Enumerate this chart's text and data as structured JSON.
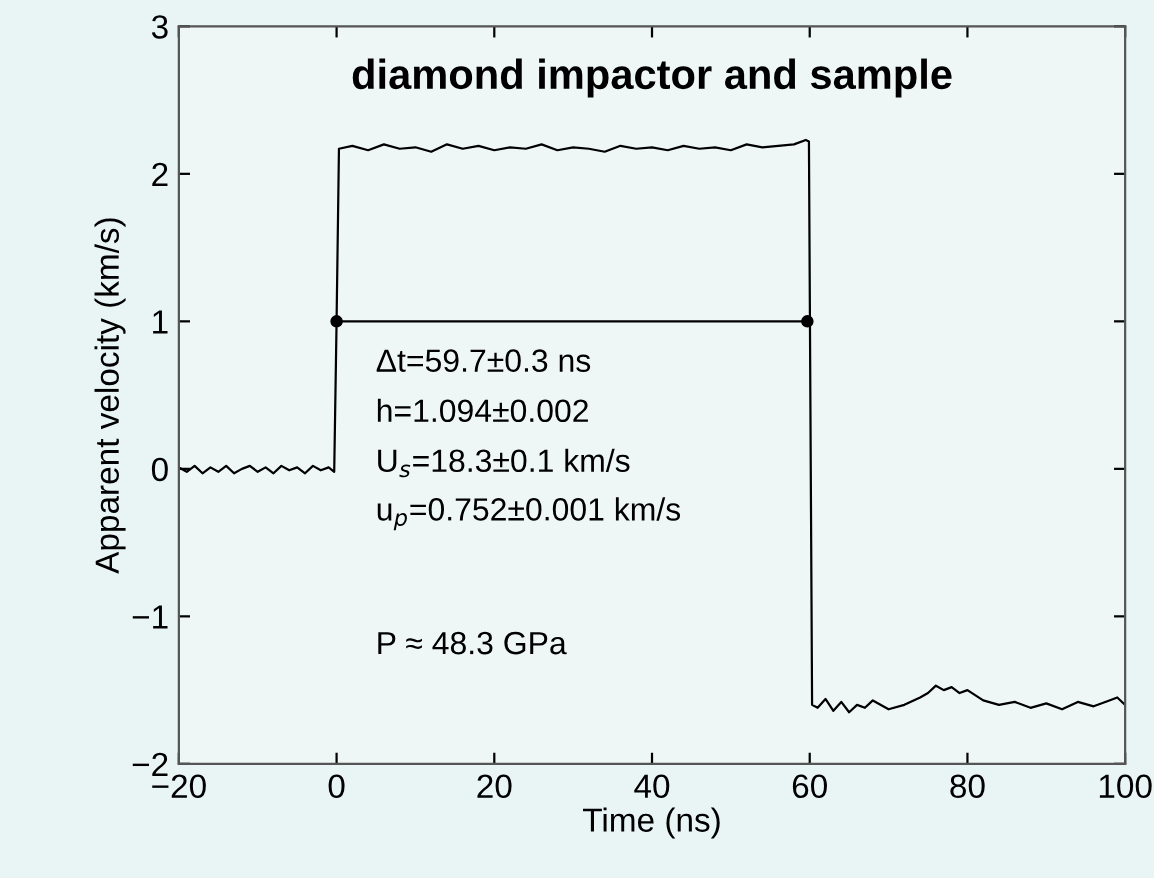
{
  "chart_data": {
    "type": "line",
    "title": "diamond impactor and sample",
    "xlabel": "Time (ns)",
    "ylabel": "Apparent velocity (km/s)",
    "xlim": [
      -20,
      100
    ],
    "ylim": [
      -2,
      3
    ],
    "xticks": [
      -20,
      0,
      20,
      40,
      60,
      80,
      100
    ],
    "yticks": [
      -2,
      -1,
      0,
      1,
      2,
      3
    ],
    "grid": false,
    "legend": false,
    "series": [
      {
        "color": "#000000",
        "marker": "none",
        "x": [
          -20,
          -19,
          -18,
          -17,
          -16,
          -15,
          -14,
          -13,
          -12,
          -11,
          -10,
          -9,
          -8,
          -7,
          -6,
          -5,
          -4,
          -3,
          -2,
          -1,
          -0.3,
          0,
          0.3,
          2,
          4,
          6,
          8,
          10,
          12,
          14,
          16,
          18,
          20,
          22,
          24,
          26,
          28,
          30,
          32,
          34,
          36,
          38,
          40,
          42,
          44,
          46,
          48,
          50,
          52,
          54,
          56,
          58,
          59.5,
          59.9,
          60.3,
          61,
          62,
          63,
          64,
          65,
          66,
          67,
          68,
          70,
          72,
          74,
          75,
          76,
          77,
          78,
          79,
          80,
          82,
          84,
          86,
          88,
          90,
          92,
          94,
          96,
          98,
          99,
          100
        ],
        "values": [
          0.01,
          -0.02,
          0.02,
          -0.03,
          0.01,
          -0.02,
          0.02,
          -0.03,
          0.0,
          0.02,
          -0.02,
          0.01,
          -0.03,
          0.02,
          -0.01,
          0.01,
          -0.03,
          0.02,
          -0.01,
          0.01,
          -0.02,
          1.0,
          2.17,
          2.19,
          2.16,
          2.2,
          2.17,
          2.18,
          2.15,
          2.2,
          2.17,
          2.19,
          2.16,
          2.18,
          2.17,
          2.2,
          2.16,
          2.18,
          2.17,
          2.15,
          2.19,
          2.17,
          2.18,
          2.16,
          2.19,
          2.17,
          2.18,
          2.16,
          2.2,
          2.18,
          2.19,
          2.2,
          2.23,
          2.22,
          -1.6,
          -1.62,
          -1.56,
          -1.64,
          -1.58,
          -1.65,
          -1.6,
          -1.62,
          -1.57,
          -1.63,
          -1.6,
          -1.55,
          -1.52,
          -1.47,
          -1.5,
          -1.48,
          -1.52,
          -1.5,
          -1.57,
          -1.6,
          -1.58,
          -1.62,
          -1.59,
          -1.63,
          -1.58,
          -1.61,
          -1.57,
          -1.55,
          -1.6
        ]
      },
      {
        "color": "#000000",
        "marker": "circle",
        "x": [
          0,
          59.7
        ],
        "values": [
          1,
          1
        ]
      }
    ],
    "annotations": [
      "Δt=59.7±0.3 ns",
      "h=1.094±0.002",
      "U$_{s}$=18.3±0.1 km/s",
      "u$_{p}$=0.752±0.001 km/s",
      "P ≈ 48.3 GPa"
    ]
  }
}
